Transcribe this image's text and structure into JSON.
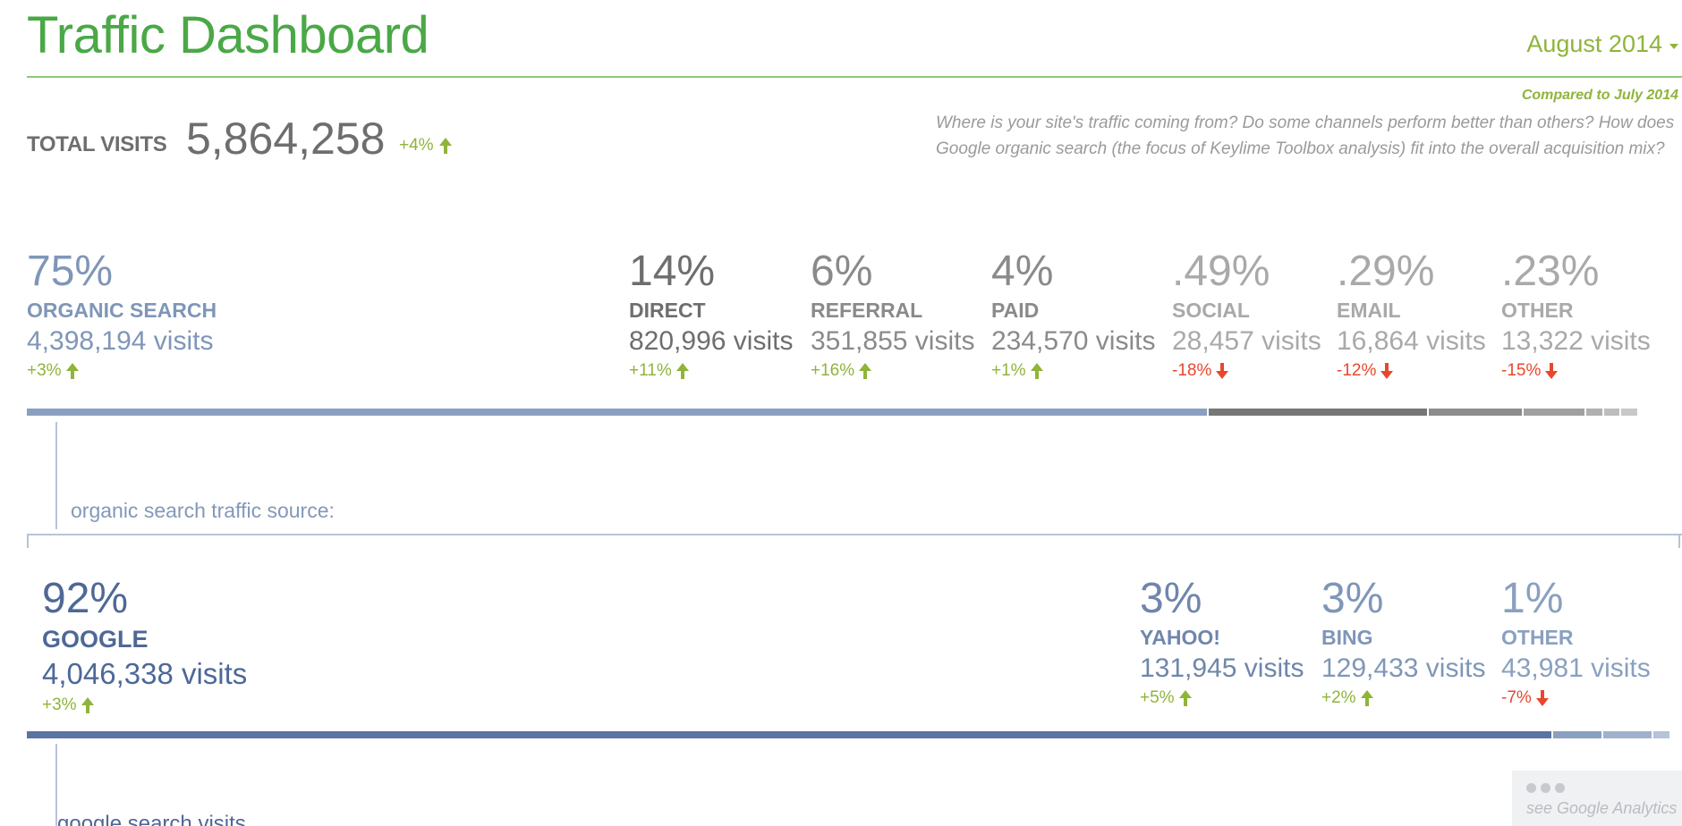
{
  "header": {
    "title": "Traffic Dashboard",
    "period": "August 2014",
    "compared": "Compared to July 2014",
    "description": "Where is your site's traffic coming from? Do some channels perform better than others? How does Google organic search (the focus of Keylime Toolbox analysis) fit into the overall acquisition mix?"
  },
  "total": {
    "label": "TOTAL VISITS",
    "value": "5,864,258",
    "change": "+4%",
    "direction": "up"
  },
  "channels": [
    {
      "pct": "75%",
      "name": "ORGANIC SEARCH",
      "visits": "4,398,194 visits",
      "change": "+3%",
      "direction": "up",
      "color": "#8aa0c0",
      "share": 0.75
    },
    {
      "pct": "14%",
      "name": "DIRECT",
      "visits": "820,996 visits",
      "change": "+11%",
      "direction": "up",
      "color": "#777777",
      "share": 0.14
    },
    {
      "pct": "6%",
      "name": "REFERRAL",
      "visits": "351,855 visits",
      "change": "+16%",
      "direction": "up",
      "color": "#8c8c8c",
      "share": 0.06
    },
    {
      "pct": "4%",
      "name": "PAID",
      "visits": "234,570 visits",
      "change": "+1%",
      "direction": "up",
      "color": "#a0a0a0",
      "share": 0.04
    },
    {
      "pct": ".49%",
      "name": "SOCIAL",
      "visits": "28,457 visits",
      "change": "-18%",
      "direction": "down",
      "color": "#b0b0b0",
      "share": 0.0049
    },
    {
      "pct": ".29%",
      "name": "EMAIL",
      "visits": "16,864 visits",
      "change": "-12%",
      "direction": "down",
      "color": "#bdbdbd",
      "share": 0.0029
    },
    {
      "pct": ".23%",
      "name": "OTHER",
      "visits": "13,322 visits",
      "change": "-15%",
      "direction": "down",
      "color": "#c8c8c8",
      "share": 0.0023
    }
  ],
  "organic": {
    "subheading": "organic search traffic source:",
    "sources": [
      {
        "pct": "92%",
        "name": "GOOGLE",
        "visits": "4,046,338 visits",
        "change": "+3%",
        "direction": "up",
        "color": "#5a74a3",
        "share": 0.92
      },
      {
        "pct": "3%",
        "name": "YAHOO!",
        "visits": "131,945 visits",
        "change": "+5%",
        "direction": "up",
        "color": "#8aa0c0",
        "share": 0.03
      },
      {
        "pct": "3%",
        "name": "BING",
        "visits": "129,433 visits",
        "change": "+2%",
        "direction": "up",
        "color": "#9fb2cc",
        "share": 0.03
      },
      {
        "pct": "1%",
        "name": "OTHER",
        "visits": "43,981 visits",
        "change": "-7%",
        "direction": "down",
        "color": "#b4c3d7",
        "share": 0.01
      }
    ]
  },
  "footer": {
    "ga_label": "see Google Analytics",
    "partial_text": "google search visits"
  },
  "icons": {
    "up": "arrow-up-icon",
    "down": "arrow-down-icon",
    "period_caret": "chevron-down-icon",
    "ga": "more-dots-icon"
  }
}
